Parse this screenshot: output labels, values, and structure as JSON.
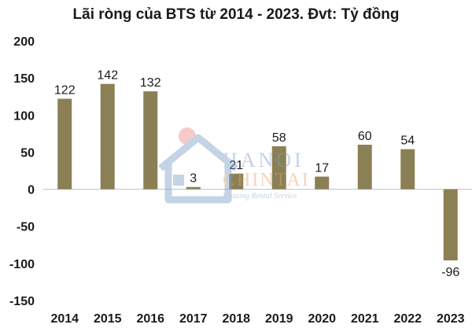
{
  "chart_data": {
    "type": "bar",
    "title": "Lãi ròng của BTS từ 2014 - 2023. Đvt: Tỷ đồng",
    "categories": [
      "2014",
      "2015",
      "2016",
      "2017",
      "2018",
      "2019",
      "2020",
      "2021",
      "2022",
      "2023"
    ],
    "values": [
      122,
      142,
      132,
      3,
      21,
      58,
      17,
      60,
      54,
      -96
    ],
    "data_labels": [
      "122",
      "142",
      "132",
      "3",
      "21",
      "58",
      "17",
      "60",
      "54",
      "-96"
    ],
    "xlabel": "",
    "ylabel": "",
    "ylim": [
      -150,
      200
    ],
    "yticks": [
      200,
      150,
      100,
      50,
      0,
      -50,
      -100,
      -150
    ],
    "ytick_labels": [
      "200",
      "150",
      "100",
      "50",
      "0",
      "-50",
      "-100",
      "-150"
    ],
    "grid": false,
    "bar_color": "#8b8055"
  },
  "watermark": {
    "brand_line1": "HANOI",
    "brand_line2": "CHINTAI",
    "tagline": "Housing Rental Service"
  }
}
